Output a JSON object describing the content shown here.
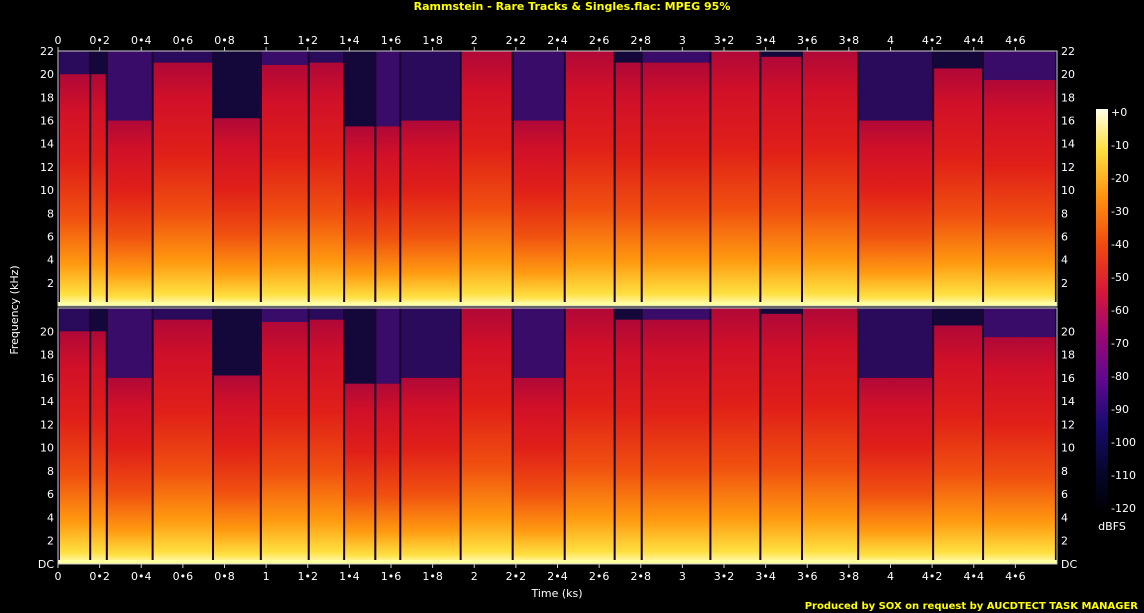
{
  "header": {
    "title": "Rammstein - Rare Tracks & Singles.flac: MPEG 95%"
  },
  "footer": {
    "text": "Produced by SOX on request by AUCDTECT TASK MANAGER"
  },
  "chart_data": {
    "type": "heatmap",
    "title": "Rammstein - Rare Tracks & Singles.flac: MPEG 95%",
    "xlabel": "Time (ks)",
    "ylabel": "Frequency (kHz)",
    "xlim": [
      0,
      4.8
    ],
    "ylim": [
      0,
      22
    ],
    "x_ticks": [
      "0",
      "0•2",
      "0•4",
      "0•6",
      "0•8",
      "1",
      "1•2",
      "1•4",
      "1•6",
      "1•8",
      "2",
      "2•2",
      "2•4",
      "2•6",
      "2•8",
      "3",
      "3•2",
      "3•4",
      "3•6",
      "3•8",
      "4",
      "4•2",
      "4•4",
      "4•6"
    ],
    "y_ticks": [
      "DC",
      "2",
      "4",
      "6",
      "8",
      "10",
      "12",
      "14",
      "16",
      "18",
      "20",
      "22"
    ],
    "channels": 2,
    "colorbar": {
      "label": "dBFS",
      "ticks": [
        "+0",
        "-10",
        "-20",
        "-30",
        "-40",
        "-50",
        "-60",
        "-70",
        "-80",
        "-90",
        "-100",
        "-110",
        "-120"
      ],
      "range": [
        -120,
        0
      ]
    },
    "tracks": [
      {
        "start": 0.0,
        "end": 0.15,
        "cutoff_khz": 20.0
      },
      {
        "start": 0.15,
        "end": 0.23,
        "cutoff_khz": 20.0
      },
      {
        "start": 0.23,
        "end": 0.45,
        "cutoff_khz": 16.0
      },
      {
        "start": 0.45,
        "end": 0.74,
        "cutoff_khz": 21.0
      },
      {
        "start": 0.74,
        "end": 0.97,
        "cutoff_khz": 16.2
      },
      {
        "start": 0.97,
        "end": 1.2,
        "cutoff_khz": 20.8
      },
      {
        "start": 1.2,
        "end": 1.37,
        "cutoff_khz": 21.0
      },
      {
        "start": 1.37,
        "end": 1.52,
        "cutoff_khz": 15.5
      },
      {
        "start": 1.52,
        "end": 1.64,
        "cutoff_khz": 15.5
      },
      {
        "start": 1.64,
        "end": 1.93,
        "cutoff_khz": 16.0
      },
      {
        "start": 1.93,
        "end": 2.18,
        "cutoff_khz": 22.0
      },
      {
        "start": 2.18,
        "end": 2.43,
        "cutoff_khz": 16.0
      },
      {
        "start": 2.43,
        "end": 2.67,
        "cutoff_khz": 22.0
      },
      {
        "start": 2.67,
        "end": 2.8,
        "cutoff_khz": 21.0
      },
      {
        "start": 2.8,
        "end": 3.13,
        "cutoff_khz": 21.0
      },
      {
        "start": 3.13,
        "end": 3.37,
        "cutoff_khz": 22.0
      },
      {
        "start": 3.37,
        "end": 3.57,
        "cutoff_khz": 21.5
      },
      {
        "start": 3.57,
        "end": 3.84,
        "cutoff_khz": 22.0
      },
      {
        "start": 3.84,
        "end": 4.2,
        "cutoff_khz": 16.0
      },
      {
        "start": 4.2,
        "end": 4.44,
        "cutoff_khz": 20.5
      },
      {
        "start": 4.44,
        "end": 4.79,
        "cutoff_khz": 19.5
      }
    ]
  }
}
